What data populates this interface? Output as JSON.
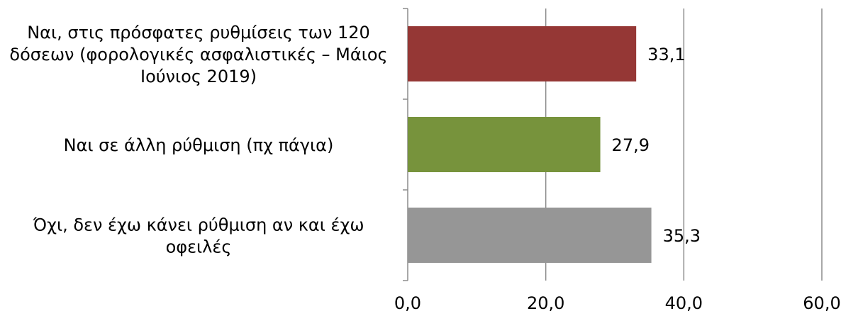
{
  "chart_data": {
    "type": "bar",
    "orientation": "horizontal",
    "categories": [
      [
        "Ναι, στις πρόσφατες ρυθμίσεις των 120",
        "δόσεων (φορολογικές ασφαλιστικές – Μάιος",
        "Ιούνιος 2019)"
      ],
      [
        "Ναι σε άλλη ρύθμιση (πχ πάγια)"
      ],
      [
        "Όχι, δεν έχω κάνει ρύθμιση αν και έχω",
        "οφειλές"
      ]
    ],
    "values": [
      33.1,
      27.9,
      35.3
    ],
    "value_labels": [
      "33,1",
      "27,9",
      "35,3"
    ],
    "bar_colors": [
      "#953735",
      "#77933c",
      "#969696"
    ],
    "xlim": [
      0,
      60
    ],
    "xticks": [
      0,
      20,
      40,
      60
    ],
    "xtick_labels": [
      "0,0",
      "20,0",
      "40,0",
      "60,0"
    ],
    "grid": true,
    "title": "",
    "xlabel": "",
    "ylabel": ""
  }
}
